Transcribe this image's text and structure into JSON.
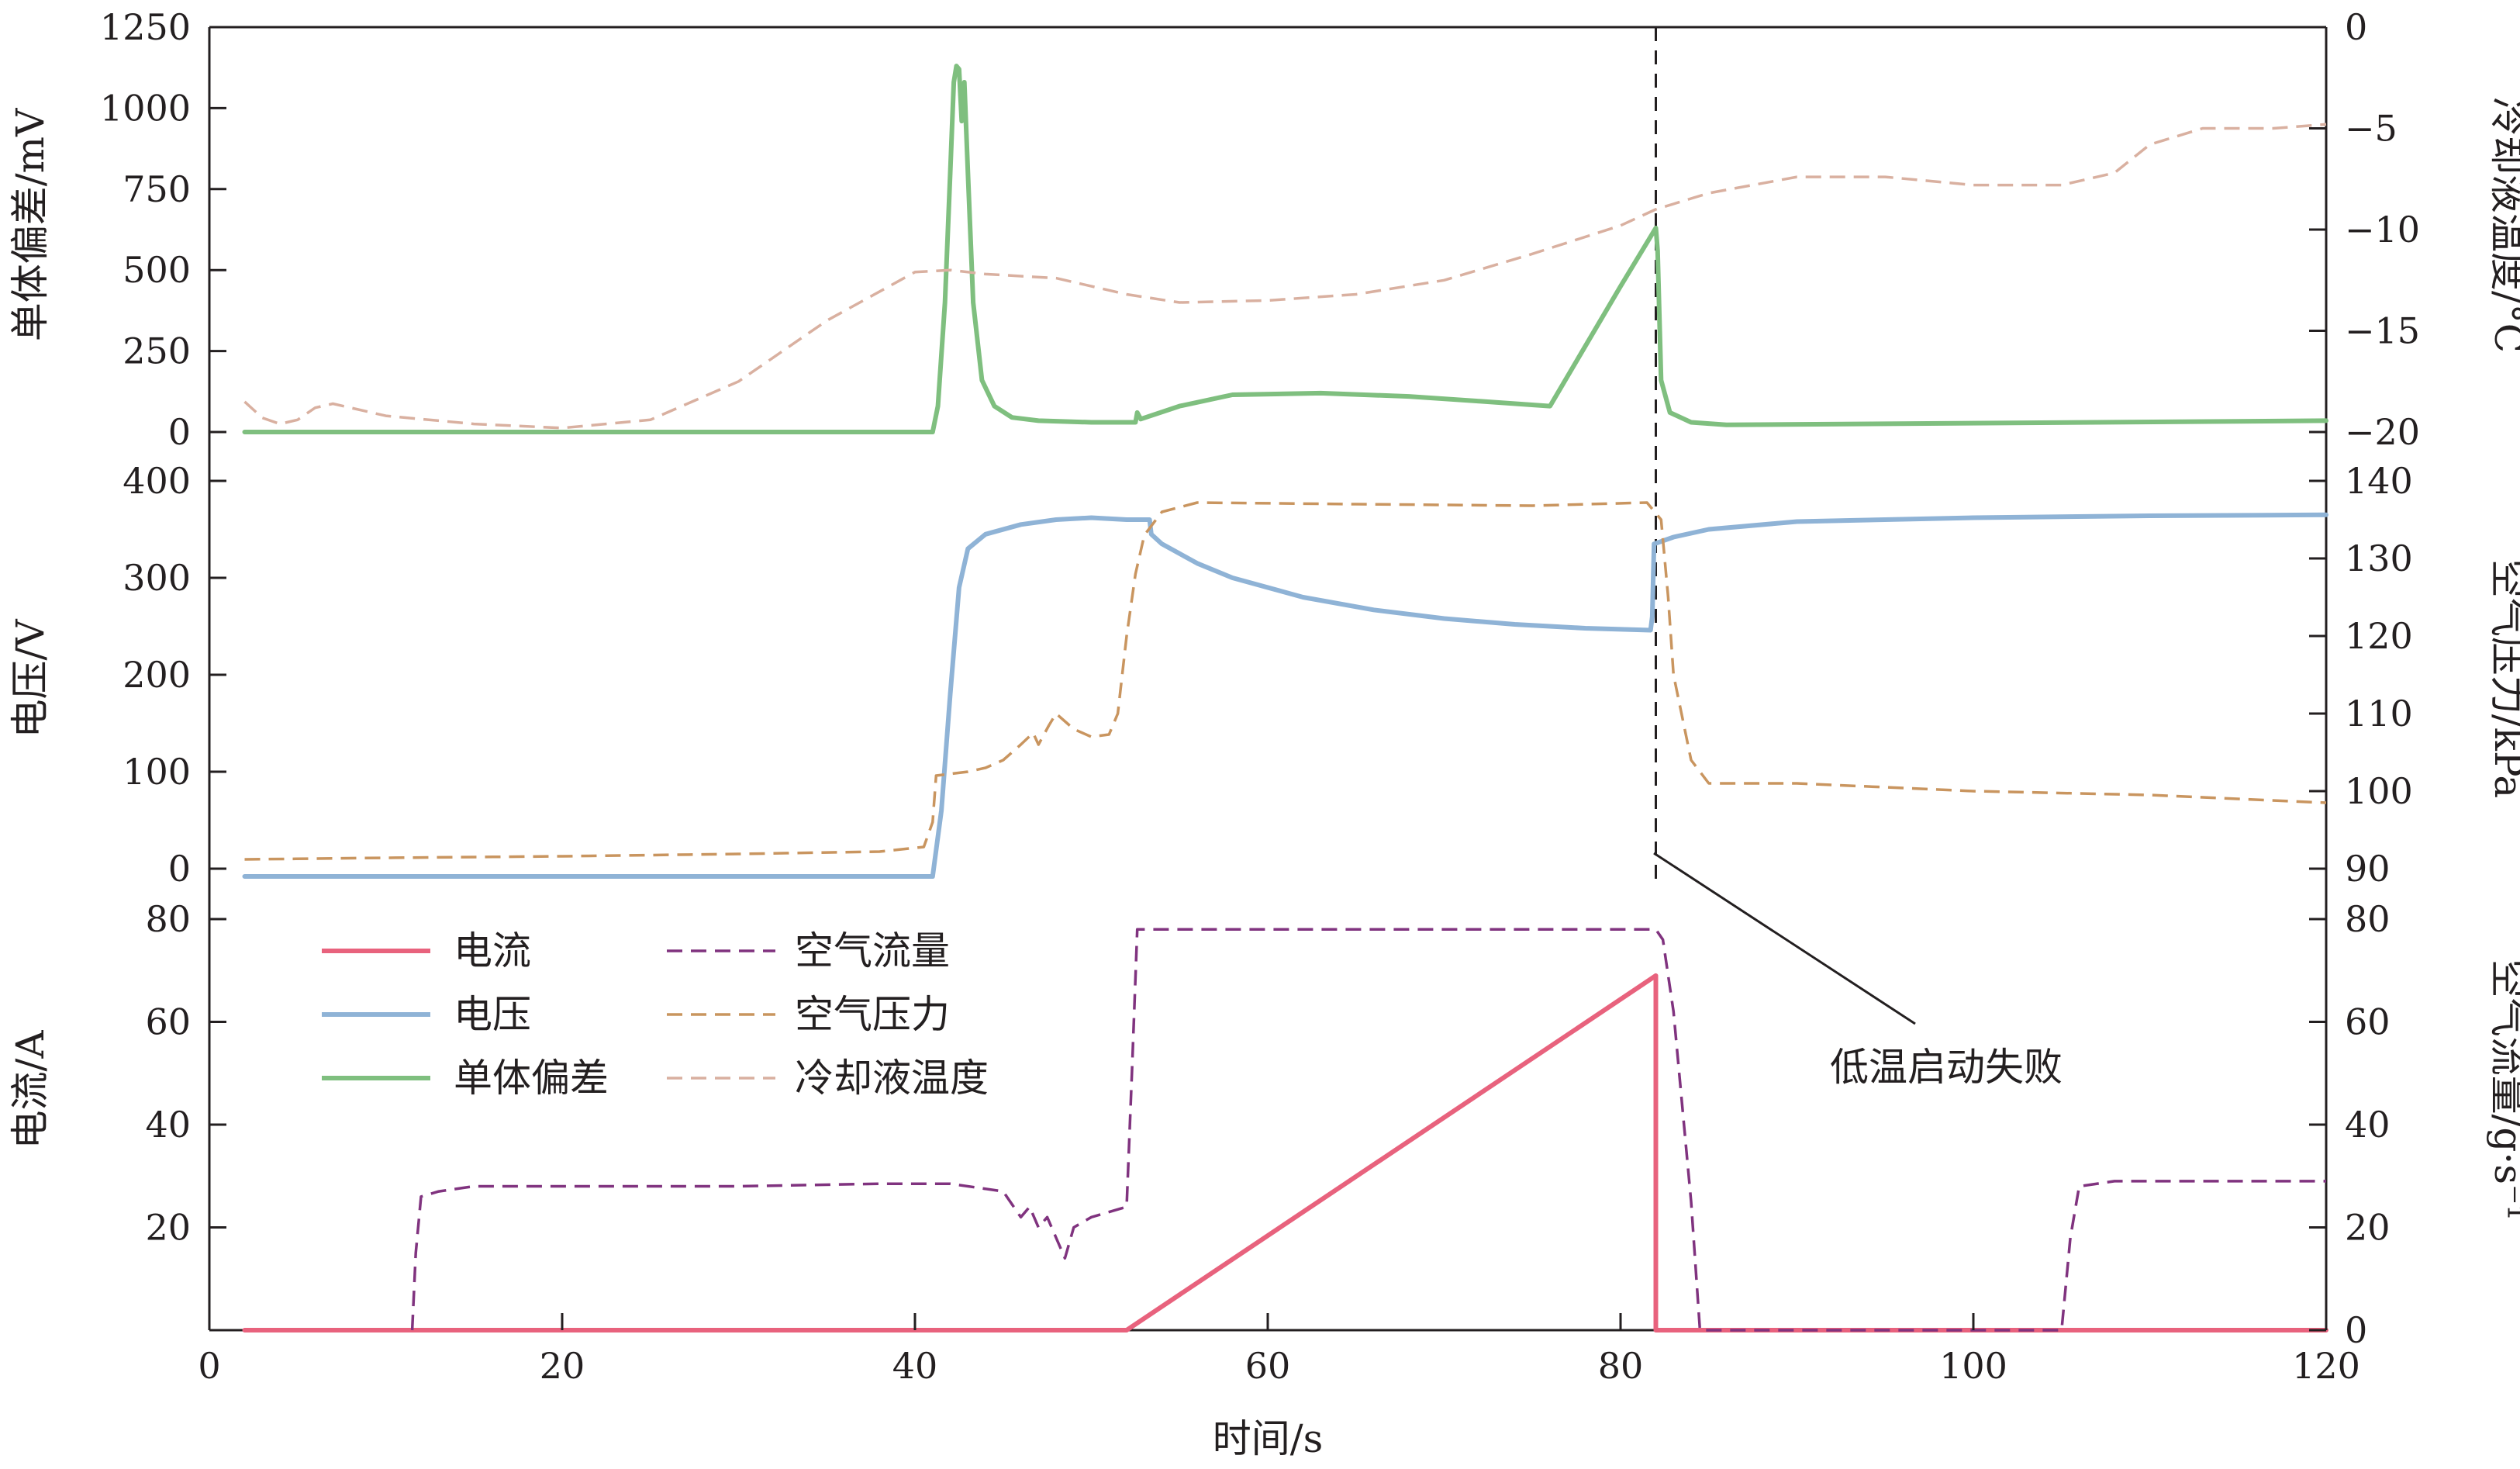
{
  "chart_data": {
    "type": "line",
    "xlabel": "时间/s",
    "xlim": [
      0,
      120
    ],
    "xticks": [
      "0",
      "20",
      "40",
      "60",
      "80",
      "100",
      "120"
    ],
    "colors": {
      "current": "#e8627d",
      "voltage": "#8fb3d6",
      "cell_deviation": "#7fbf7f",
      "air_flow": "#80337f",
      "air_pressure": "#c9955f",
      "coolant_temp": "#d9b0a0",
      "axis": "#231f20"
    },
    "panels": [
      {
        "id": "top",
        "ylabel_left": "单体偏差/mV",
        "ylabel_right": "冷却液温度/°C",
        "ylim_left": [
          0,
          1250
        ],
        "ylim_right": [
          -20,
          0
        ],
        "yticks_left": [
          "0",
          "250",
          "500",
          "750",
          "1000",
          "1250"
        ],
        "yticks_right": [
          "-20",
          "-15",
          "-10",
          "-5",
          "0"
        ],
        "series": [
          {
            "name": "单体偏差",
            "key": "cell_deviation",
            "axis": "left",
            "style": "solid",
            "points": [
              [
                2,
                0
              ],
              [
                41,
                0
              ],
              [
                41.3,
                80
              ],
              [
                41.7,
                400
              ],
              [
                42.0,
                800
              ],
              [
                42.2,
                1080
              ],
              [
                42.35,
                1130
              ],
              [
                42.5,
                1120
              ],
              [
                42.65,
                960
              ],
              [
                42.8,
                1080
              ],
              [
                43.0,
                800
              ],
              [
                43.3,
                400
              ],
              [
                43.8,
                160
              ],
              [
                44.5,
                80
              ],
              [
                45.5,
                45
              ],
              [
                47,
                35
              ],
              [
                50,
                30
              ],
              [
                52.5,
                30
              ],
              [
                52.6,
                60
              ],
              [
                52.8,
                40
              ],
              [
                55,
                80
              ],
              [
                58,
                115
              ],
              [
                63,
                120
              ],
              [
                68,
                110
              ],
              [
                72,
                95
              ],
              [
                76,
                80
              ],
              [
                80,
                450
              ],
              [
                82,
                630
              ],
              [
                82.1,
                560
              ],
              [
                82.3,
                160
              ],
              [
                82.8,
                60
              ],
              [
                84,
                30
              ],
              [
                86,
                22
              ],
              [
                120,
                35
              ]
            ]
          },
          {
            "name": "冷却液温度",
            "key": "coolant_temp",
            "axis": "right",
            "style": "dashed",
            "points": [
              [
                2,
                -18.5
              ],
              [
                3,
                -19.3
              ],
              [
                4,
                -19.6
              ],
              [
                5,
                -19.4
              ],
              [
                6,
                -18.8
              ],
              [
                7,
                -18.6
              ],
              [
                10,
                -19.2
              ],
              [
                15,
                -19.6
              ],
              [
                20,
                -19.8
              ],
              [
                25,
                -19.4
              ],
              [
                30,
                -17.5
              ],
              [
                35,
                -14.5
              ],
              [
                40,
                -12.1
              ],
              [
                42,
                -12.0
              ],
              [
                44,
                -12.2
              ],
              [
                48,
                -12.4
              ],
              [
                52,
                -13.2
              ],
              [
                55,
                -13.6
              ],
              [
                60,
                -13.5
              ],
              [
                65,
                -13.2
              ],
              [
                70,
                -12.5
              ],
              [
                75,
                -11.2
              ],
              [
                80,
                -9.8
              ],
              [
                82,
                -9.0
              ],
              [
                85,
                -8.2
              ],
              [
                90,
                -7.4
              ],
              [
                95,
                -7.4
              ],
              [
                100,
                -7.8
              ],
              [
                105,
                -7.8
              ],
              [
                108,
                -7.2
              ],
              [
                110,
                -5.8
              ],
              [
                113,
                -5.0
              ],
              [
                117,
                -5.0
              ],
              [
                120,
                -4.8
              ]
            ]
          }
        ]
      },
      {
        "id": "middle",
        "ylabel_left": "电压/V",
        "ylabel_right": "空气压力/kPa",
        "ylim_left": [
          0,
          400
        ],
        "ylim_right": [
          90,
          140
        ],
        "yticks_left": [
          "0",
          "100",
          "200",
          "300",
          "400"
        ],
        "yticks_right": [
          "90",
          "100",
          "110",
          "120",
          "130",
          "140"
        ],
        "series": [
          {
            "name": "电压",
            "key": "voltage",
            "axis": "left",
            "style": "solid",
            "points": [
              [
                2,
                -8
              ],
              [
                41,
                -8
              ],
              [
                41.5,
                60
              ],
              [
                42,
                180
              ],
              [
                42.5,
                290
              ],
              [
                43,
                330
              ],
              [
                44,
                345
              ],
              [
                46,
                355
              ],
              [
                48,
                360
              ],
              [
                50,
                362
              ],
              [
                52,
                360
              ],
              [
                53.3,
                360
              ],
              [
                53.4,
                345
              ],
              [
                54,
                335
              ],
              [
                56,
                315
              ],
              [
                58,
                300
              ],
              [
                62,
                280
              ],
              [
                66,
                267
              ],
              [
                70,
                258
              ],
              [
                74,
                252
              ],
              [
                78,
                248
              ],
              [
                81.7,
                246
              ],
              [
                81.8,
                260
              ],
              [
                81.9,
                335
              ],
              [
                83,
                342
              ],
              [
                85,
                350
              ],
              [
                90,
                358
              ],
              [
                100,
                362
              ],
              [
                110,
                364
              ],
              [
                120,
                365
              ]
            ]
          },
          {
            "name": "空气压力",
            "key": "air_pressure",
            "axis": "right",
            "style": "dashed",
            "points": [
              [
                2,
                91.2
              ],
              [
                10,
                91.4
              ],
              [
                20,
                91.6
              ],
              [
                30,
                91.9
              ],
              [
                38,
                92.2
              ],
              [
                40.5,
                92.8
              ],
              [
                41,
                96
              ],
              [
                41.2,
                102
              ],
              [
                43,
                102.5
              ],
              [
                44,
                103
              ],
              [
                45,
                104
              ],
              [
                46,
                106
              ],
              [
                46.7,
                107.5
              ],
              [
                47,
                106
              ],
              [
                47.6,
                108.5
              ],
              [
                48,
                110
              ],
              [
                49,
                108
              ],
              [
                50,
                107
              ],
              [
                51,
                107.3
              ],
              [
                51.5,
                110
              ],
              [
                52,
                120
              ],
              [
                52.5,
                128
              ],
              [
                53,
                133
              ],
              [
                54,
                136
              ],
              [
                56,
                137.2
              ],
              [
                65,
                137
              ],
              [
                75,
                136.8
              ],
              [
                81.5,
                137.2
              ],
              [
                82.3,
                135
              ],
              [
                82.7,
                125
              ],
              [
                83,
                115
              ],
              [
                84,
                104
              ],
              [
                85,
                101
              ],
              [
                90,
                101
              ],
              [
                100,
                100
              ],
              [
                110,
                99.5
              ],
              [
                120,
                98.5
              ]
            ]
          }
        ]
      },
      {
        "id": "bottom",
        "ylabel_left": "电流/A",
        "ylabel_right": "空气流量/g·s⁻¹",
        "ylim_left": [
          0,
          80
        ],
        "ylim_right": [
          0,
          80
        ],
        "yticks_left": [
          "20",
          "40",
          "60",
          "80"
        ],
        "yticks_right": [
          "0",
          "20",
          "40",
          "60",
          "80"
        ],
        "series": [
          {
            "name": "电流",
            "key": "current",
            "axis": "left",
            "style": "solid",
            "points": [
              [
                2,
                0
              ],
              [
                52,
                0
              ],
              [
                82,
                69
              ],
              [
                82,
                0
              ],
              [
                120,
                0
              ]
            ]
          },
          {
            "name": "空气流量",
            "key": "air_flow",
            "axis": "right",
            "style": "dashed",
            "points": [
              [
                11.5,
                0
              ],
              [
                11.7,
                15
              ],
              [
                12,
                26
              ],
              [
                13,
                27
              ],
              [
                15,
                28
              ],
              [
                20,
                28
              ],
              [
                30,
                28
              ],
              [
                38,
                28.5
              ],
              [
                42,
                28.5
              ],
              [
                45,
                27
              ],
              [
                46,
                22
              ],
              [
                46.5,
                24
              ],
              [
                47,
                20
              ],
              [
                47.5,
                22
              ],
              [
                48,
                18
              ],
              [
                48.5,
                14
              ],
              [
                49,
                20
              ],
              [
                50,
                22
              ],
              [
                52,
                24
              ],
              [
                52.3,
                50
              ],
              [
                52.6,
                78
              ],
              [
                55,
                78
              ],
              [
                60,
                78
              ],
              [
                65,
                78
              ],
              [
                70,
                78
              ],
              [
                75,
                78
              ],
              [
                80,
                78
              ],
              [
                82,
                78
              ],
              [
                82.4,
                76
              ],
              [
                83,
                62
              ],
              [
                84,
                25
              ],
              [
                84.5,
                0
              ],
              [
                105,
                0
              ],
              [
                105.5,
                18
              ],
              [
                106,
                28
              ],
              [
                108,
                29
              ],
              [
                112,
                29
              ],
              [
                120,
                29
              ]
            ]
          }
        ]
      }
    ],
    "legend": {
      "placement": "upper-left of bottom panel",
      "items": [
        {
          "label": "电流",
          "key": "current",
          "style": "solid"
        },
        {
          "label": "空气流量",
          "key": "air_flow",
          "style": "dashed"
        },
        {
          "label": "电压",
          "key": "voltage",
          "style": "solid"
        },
        {
          "label": "空气压力",
          "key": "air_pressure",
          "style": "dashed"
        },
        {
          "label": "单体偏差",
          "key": "cell_deviation",
          "style": "solid"
        },
        {
          "label": "冷却液温度",
          "key": "coolant_temp",
          "style": "dashed"
        }
      ]
    },
    "annotation": {
      "text": "低温启动失败",
      "marker_x": 82
    }
  }
}
